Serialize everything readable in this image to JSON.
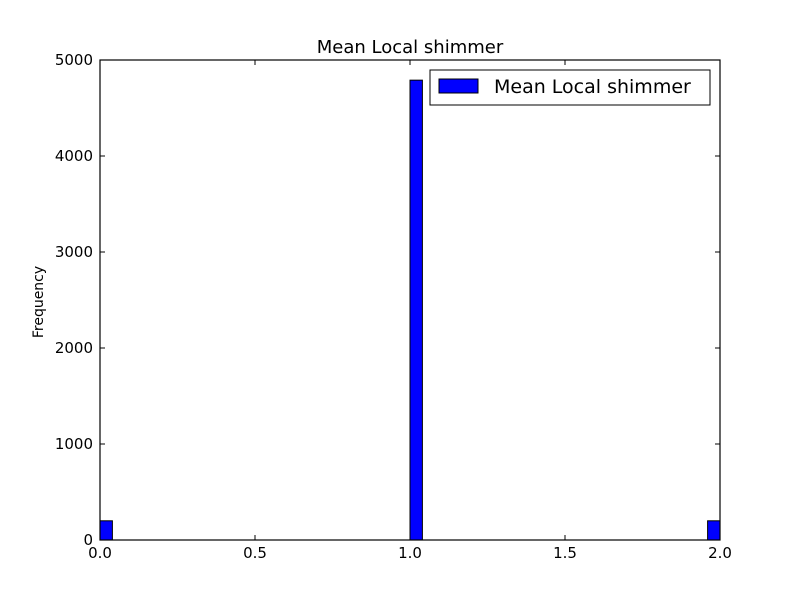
{
  "chart_data": {
    "type": "bar",
    "title": "Mean Local shimmer",
    "xlabel": "",
    "ylabel": "Frequency",
    "xlim": [
      0.0,
      2.0
    ],
    "ylim": [
      0,
      5000
    ],
    "xticks": [
      "0.0",
      "0.5",
      "1.0",
      "1.5",
      "2.0"
    ],
    "yticks": [
      "0",
      "1000",
      "2000",
      "3000",
      "4000",
      "5000"
    ],
    "bin_width": 0.04,
    "bins": [
      {
        "x": 0.0,
        "value": 200
      },
      {
        "x": 1.0,
        "value": 4790
      },
      {
        "x": 1.96,
        "value": 200
      }
    ],
    "series": [
      {
        "name": "Mean Local shimmer",
        "color": "#0000ff"
      }
    ],
    "legend_position": "top-right",
    "grid": false
  }
}
